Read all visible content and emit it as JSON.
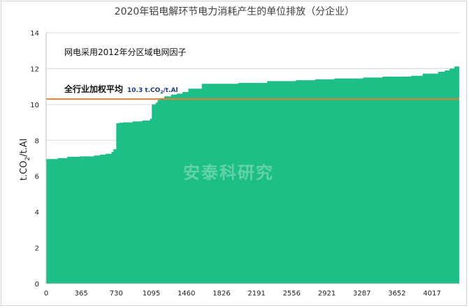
{
  "chart_data": {
    "type": "area",
    "title": "2020年铝电解环节电力消耗产生的单位排放（分企业）",
    "ylabel": "t.CO₂/t.Al",
    "ylabel_parts": {
      "base": "t.CO",
      "sub": "2",
      "tail": "/t.Al"
    },
    "xlabel": "",
    "xlim": [
      0,
      4300
    ],
    "ylim": [
      0,
      14
    ],
    "xticks": [
      0,
      365,
      730,
      1095,
      1460,
      1826,
      2191,
      2556,
      2921,
      3287,
      3652,
      4017
    ],
    "yticks": [
      0,
      2,
      4,
      6,
      8,
      10,
      12,
      14
    ],
    "grid": "horizontal",
    "fill_color": "#1dbf86",
    "annotation_note": "网电采用2012年分区域电网因子",
    "average": {
      "label": "全行业加权平均",
      "value": 10.3,
      "value_label": {
        "base": "10.3 t.CO",
        "sub": "2",
        "tail": "/t.Al"
      },
      "color": "#ed7d31"
    },
    "x": [
      0,
      120,
      220,
      350,
      500,
      560,
      620,
      680,
      700,
      730,
      760,
      800,
      900,
      1000,
      1080,
      1100,
      1140,
      1160,
      1180,
      1230,
      1300,
      1360,
      1420,
      1480,
      1620,
      2000,
      2300,
      2600,
      2800,
      3000,
      3300,
      3500,
      3800,
      3920,
      4080,
      4150,
      4200,
      4250,
      4300
    ],
    "values": [
      6.95,
      7.0,
      7.08,
      7.1,
      7.15,
      7.2,
      7.25,
      7.35,
      7.5,
      8.95,
      8.98,
      9.0,
      9.05,
      9.1,
      9.2,
      10.0,
      10.1,
      10.25,
      10.35,
      10.45,
      10.55,
      10.6,
      10.7,
      10.88,
      11.15,
      11.2,
      11.3,
      11.35,
      11.4,
      11.45,
      11.5,
      11.55,
      11.6,
      11.72,
      11.82,
      11.9,
      12.0,
      12.12,
      12.15
    ]
  },
  "watermark": "安泰科研究"
}
